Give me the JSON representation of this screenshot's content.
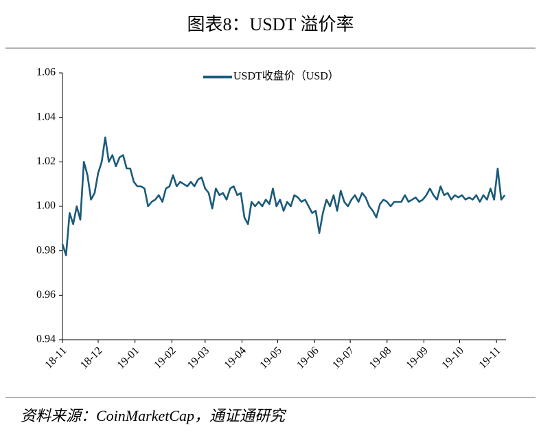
{
  "chart_data": {
    "type": "line",
    "title": "图表8：USDT 溢价率",
    "source": "资料来源：CoinMarketCap，通证通研究",
    "x": [
      0,
      3,
      6,
      9,
      12,
      15,
      18,
      21,
      24,
      27,
      30,
      33,
      36,
      39,
      42,
      45,
      48,
      51,
      54,
      57,
      60,
      63,
      66,
      69,
      72,
      75,
      78,
      81,
      84,
      87,
      90,
      93,
      96,
      99,
      102,
      105,
      108,
      111,
      114,
      117,
      120,
      123,
      126,
      129,
      132,
      135,
      138,
      141,
      144,
      147,
      150,
      153,
      156,
      159,
      162,
      165,
      168,
      171,
      174,
      177,
      180,
      183,
      186,
      189,
      192,
      195,
      198,
      201,
      204,
      207,
      210,
      213,
      216,
      219,
      222,
      225,
      228,
      231,
      234,
      237,
      240,
      243,
      246,
      249,
      252,
      255,
      258,
      261,
      264,
      267,
      270,
      273,
      276,
      279,
      282,
      285,
      288,
      291,
      294,
      297,
      300,
      303,
      306,
      309,
      312,
      315,
      318,
      321,
      324,
      327,
      330,
      333,
      336,
      339,
      342,
      345,
      348,
      351,
      354,
      357,
      360,
      363,
      366,
      369,
      372
    ],
    "series": [
      {
        "name": "USDT收盘价（USD）",
        "color": "#1a5a7a",
        "values": [
          0.983,
          0.978,
          0.997,
          0.992,
          1.0,
          0.994,
          1.02,
          1.014,
          1.003,
          1.006,
          1.015,
          1.02,
          1.031,
          1.02,
          1.023,
          1.018,
          1.022,
          1.023,
          1.017,
          1.017,
          1.011,
          1.009,
          1.009,
          1.008,
          1.0,
          1.002,
          1.003,
          1.005,
          1.002,
          1.008,
          1.009,
          1.014,
          1.009,
          1.011,
          1.01,
          1.009,
          1.011,
          1.009,
          1.012,
          1.013,
          1.008,
          1.006,
          0.999,
          1.008,
          1.005,
          1.006,
          1.003,
          1.008,
          1.009,
          1.005,
          1.006,
          0.995,
          0.992,
          1.002,
          1.0,
          1.002,
          1.0,
          1.003,
          1.001,
          1.008,
          1.0,
          1.003,
          0.998,
          1.002,
          1.0,
          1.005,
          1.004,
          1.002,
          1.003,
          1.0,
          0.997,
          0.998,
          0.988,
          0.997,
          1.003,
          1.0,
          1.005,
          0.998,
          1.007,
          1.002,
          1.0,
          1.003,
          1.005,
          1.002,
          1.006,
          1.004,
          1.0,
          0.998,
          0.995,
          1.001,
          1.003,
          1.002,
          1.0,
          1.002,
          1.002,
          1.002,
          1.005,
          1.002,
          1.003,
          1.004,
          1.002,
          1.003,
          1.005,
          1.008,
          1.005,
          1.003,
          1.009,
          1.005,
          1.006,
          1.003,
          1.005,
          1.004,
          1.005,
          1.003,
          1.004,
          1.003,
          1.005,
          1.002,
          1.005,
          1.003,
          1.008,
          1.003,
          1.017,
          1.003,
          1.005
        ]
      }
    ],
    "xlim": [
      0,
      373
    ],
    "xticks": [
      {
        "value": 0,
        "label": "18-11"
      },
      {
        "value": 30,
        "label": "18-12"
      },
      {
        "value": 61,
        "label": "19-01"
      },
      {
        "value": 92,
        "label": "19-02"
      },
      {
        "value": 120,
        "label": "19-03"
      },
      {
        "value": 151,
        "label": "19-04"
      },
      {
        "value": 181,
        "label": "19-05"
      },
      {
        "value": 212,
        "label": "19-06"
      },
      {
        "value": 242,
        "label": "19-07"
      },
      {
        "value": 273,
        "label": "19-08"
      },
      {
        "value": 304,
        "label": "19-09"
      },
      {
        "value": 334,
        "label": "19-10"
      },
      {
        "value": 365,
        "label": "19-11"
      }
    ],
    "ylim": [
      0.94,
      1.06
    ],
    "yticks": [
      {
        "value": 0.94,
        "label": "0.94"
      },
      {
        "value": 0.96,
        "label": "0.96"
      },
      {
        "value": 0.98,
        "label": "0.98"
      },
      {
        "value": 1.0,
        "label": "1.00"
      },
      {
        "value": 1.02,
        "label": "1.02"
      },
      {
        "value": 1.04,
        "label": "1.04"
      },
      {
        "value": 1.06,
        "label": "1.06"
      }
    ],
    "grid": false,
    "legend": "top"
  }
}
